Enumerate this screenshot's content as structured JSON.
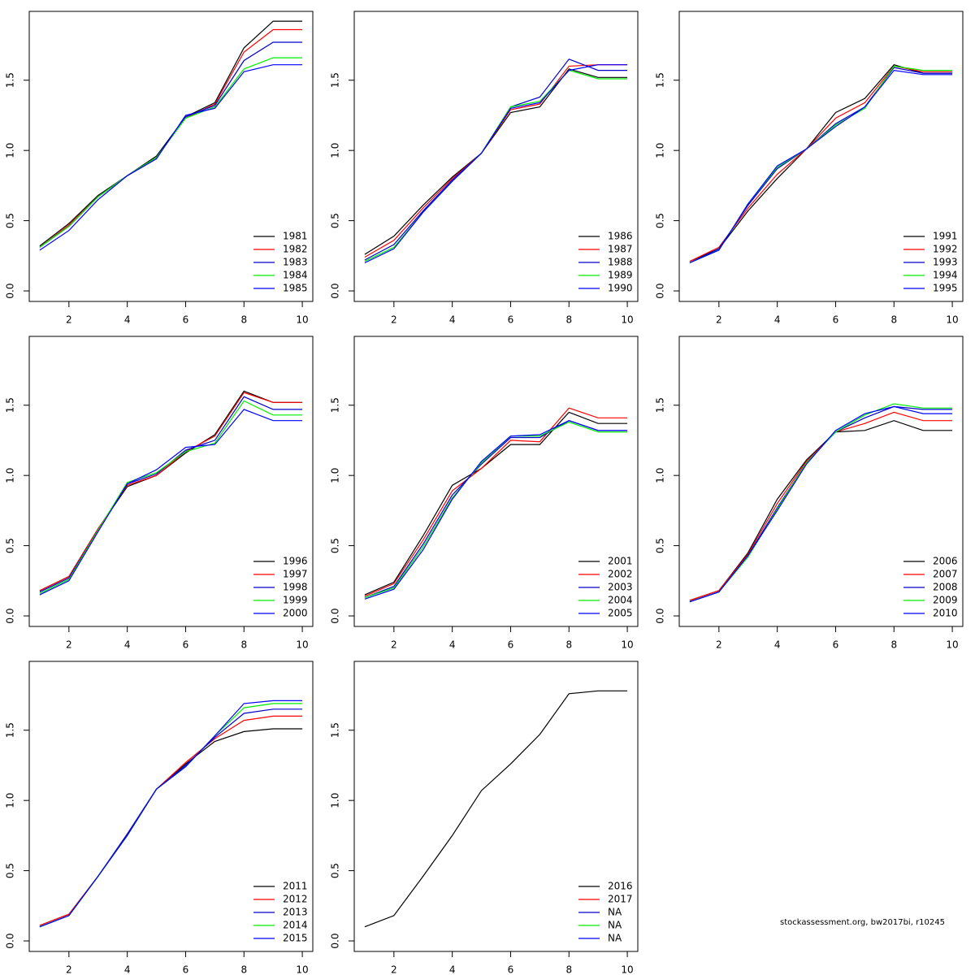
{
  "chart_data": [
    {
      "type": "line",
      "x": [
        1,
        2,
        3,
        4,
        5,
        6,
        7,
        8,
        9,
        10
      ],
      "xlim": [
        0.64,
        10.36
      ],
      "ylim": [
        -0.075,
        1.99
      ],
      "xticks": [
        2,
        4,
        6,
        8,
        10
      ],
      "yticks": [
        {
          "value": 0,
          "label": "0.0"
        },
        0.5,
        {
          "value": 1,
          "label": "1.0"
        },
        1.5
      ],
      "legend": "bottomright",
      "series": [
        {
          "name": "1981",
          "color": "#000000",
          "values": [
            0.32,
            0.48,
            0.68,
            0.82,
            0.96,
            1.24,
            1.34,
            1.73,
            1.92,
            1.92
          ]
        },
        {
          "name": "1982",
          "color": "#ff0000",
          "values": [
            0.31,
            0.47,
            0.67,
            0.82,
            0.95,
            1.23,
            1.33,
            1.7,
            1.86,
            1.86
          ]
        },
        {
          "name": "1983",
          "color": "#0000cd",
          "values": [
            0.31,
            0.46,
            0.67,
            0.82,
            0.95,
            1.24,
            1.32,
            1.64,
            1.77,
            1.77
          ]
        },
        {
          "name": "1984",
          "color": "#00ee00",
          "values": [
            0.31,
            0.46,
            0.67,
            0.82,
            0.95,
            1.23,
            1.31,
            1.58,
            1.66,
            1.66
          ]
        },
        {
          "name": "1985",
          "color": "#0000ff",
          "values": [
            0.29,
            0.43,
            0.65,
            0.82,
            0.94,
            1.25,
            1.3,
            1.56,
            1.61,
            1.61
          ]
        }
      ]
    },
    {
      "type": "line",
      "x": [
        1,
        2,
        3,
        4,
        5,
        6,
        7,
        8,
        9,
        10
      ],
      "xlim": [
        0.64,
        10.36
      ],
      "ylim": [
        -0.075,
        1.99
      ],
      "xticks": [
        2,
        4,
        6,
        8,
        10
      ],
      "yticks": [
        {
          "value": 0,
          "label": "0.0"
        },
        0.5,
        {
          "value": 1,
          "label": "1.0"
        },
        1.5
      ],
      "legend": "bottomright",
      "series": [
        {
          "name": "1986",
          "color": "#000000",
          "values": [
            0.26,
            0.39,
            0.61,
            0.81,
            0.98,
            1.27,
            1.31,
            1.58,
            1.52,
            1.52
          ]
        },
        {
          "name": "1987",
          "color": "#ff0000",
          "values": [
            0.24,
            0.36,
            0.59,
            0.8,
            0.98,
            1.29,
            1.33,
            1.6,
            1.61,
            1.61
          ]
        },
        {
          "name": "1988",
          "color": "#0000cd",
          "values": [
            0.22,
            0.33,
            0.57,
            0.79,
            0.98,
            1.31,
            1.38,
            1.65,
            1.57,
            1.57
          ]
        },
        {
          "name": "1989",
          "color": "#00ee00",
          "values": [
            0.21,
            0.31,
            0.56,
            0.78,
            0.98,
            1.31,
            1.35,
            1.57,
            1.51,
            1.51
          ]
        },
        {
          "name": "1990",
          "color": "#0000ff",
          "values": [
            0.2,
            0.3,
            0.56,
            0.78,
            0.98,
            1.3,
            1.34,
            1.57,
            1.61,
            1.61
          ]
        }
      ]
    },
    {
      "type": "line",
      "x": [
        1,
        2,
        3,
        4,
        5,
        6,
        7,
        8,
        9,
        10
      ],
      "xlim": [
        0.64,
        10.36
      ],
      "ylim": [
        -0.075,
        1.99
      ],
      "xticks": [
        2,
        4,
        6,
        8,
        10
      ],
      "yticks": [
        {
          "value": 0,
          "label": "0.0"
        },
        0.5,
        {
          "value": 1,
          "label": "1.0"
        },
        1.5
      ],
      "legend": "bottomright",
      "series": [
        {
          "name": "1991",
          "color": "#000000",
          "values": [
            0.21,
            0.3,
            0.57,
            0.8,
            1.01,
            1.27,
            1.37,
            1.61,
            1.55,
            1.55
          ]
        },
        {
          "name": "1992",
          "color": "#ff0000",
          "values": [
            0.21,
            0.31,
            0.59,
            0.83,
            1.01,
            1.23,
            1.34,
            1.6,
            1.56,
            1.56
          ]
        },
        {
          "name": "1993",
          "color": "#0000cd",
          "values": [
            0.2,
            0.3,
            0.61,
            0.87,
            1.01,
            1.19,
            1.31,
            1.59,
            1.55,
            1.55
          ]
        },
        {
          "name": "1994",
          "color": "#00ee00",
          "values": [
            0.2,
            0.29,
            0.62,
            0.88,
            1.01,
            1.18,
            1.3,
            1.6,
            1.57,
            1.57
          ]
        },
        {
          "name": "1995",
          "color": "#0000ff",
          "values": [
            0.2,
            0.29,
            0.62,
            0.89,
            1.01,
            1.17,
            1.31,
            1.57,
            1.54,
            1.54
          ]
        }
      ]
    },
    {
      "type": "line",
      "x": [
        1,
        2,
        3,
        4,
        5,
        6,
        7,
        8,
        9,
        10
      ],
      "xlim": [
        0.64,
        10.36
      ],
      "ylim": [
        -0.075,
        1.99
      ],
      "xticks": [
        2,
        4,
        6,
        8,
        10
      ],
      "yticks": [
        {
          "value": 0,
          "label": "0.0"
        },
        0.5,
        {
          "value": 1,
          "label": "1.0"
        },
        1.5
      ],
      "legend": "bottomright",
      "series": [
        {
          "name": "1996",
          "color": "#000000",
          "values": [
            0.18,
            0.28,
            0.62,
            0.92,
            1.0,
            1.16,
            1.29,
            1.6,
            1.52,
            1.52
          ]
        },
        {
          "name": "1997",
          "color": "#ff0000",
          "values": [
            0.18,
            0.28,
            0.62,
            0.93,
            1.0,
            1.17,
            1.28,
            1.59,
            1.52,
            1.52
          ]
        },
        {
          "name": "1998",
          "color": "#0000cd",
          "values": [
            0.17,
            0.27,
            0.61,
            0.94,
            1.01,
            1.18,
            1.25,
            1.56,
            1.47,
            1.47
          ]
        },
        {
          "name": "1999",
          "color": "#00ee00",
          "values": [
            0.16,
            0.26,
            0.61,
            0.95,
            1.02,
            1.17,
            1.23,
            1.53,
            1.43,
            1.43
          ]
        },
        {
          "name": "2000",
          "color": "#0000ff",
          "values": [
            0.15,
            0.25,
            0.6,
            0.94,
            1.04,
            1.2,
            1.22,
            1.47,
            1.39,
            1.39
          ]
        }
      ]
    },
    {
      "type": "line",
      "x": [
        1,
        2,
        3,
        4,
        5,
        6,
        7,
        8,
        9,
        10
      ],
      "xlim": [
        0.64,
        10.36
      ],
      "ylim": [
        -0.075,
        1.99
      ],
      "xticks": [
        2,
        4,
        6,
        8,
        10
      ],
      "yticks": [
        {
          "value": 0,
          "label": "0.0"
        },
        0.5,
        {
          "value": 1,
          "label": "1.0"
        },
        1.5
      ],
      "legend": "bottomright",
      "series": [
        {
          "name": "2001",
          "color": "#000000",
          "values": [
            0.15,
            0.24,
            0.57,
            0.93,
            1.05,
            1.22,
            1.22,
            1.45,
            1.37,
            1.37
          ]
        },
        {
          "name": "2002",
          "color": "#ff0000",
          "values": [
            0.14,
            0.23,
            0.54,
            0.89,
            1.05,
            1.25,
            1.24,
            1.48,
            1.41,
            1.41
          ]
        },
        {
          "name": "2003",
          "color": "#0000cd",
          "values": [
            0.13,
            0.21,
            0.51,
            0.86,
            1.08,
            1.27,
            1.27,
            1.39,
            1.32,
            1.32
          ]
        },
        {
          "name": "2004",
          "color": "#00ee00",
          "values": [
            0.13,
            0.2,
            0.49,
            0.84,
            1.09,
            1.28,
            1.28,
            1.38,
            1.31,
            1.31
          ]
        },
        {
          "name": "2005",
          "color": "#0000ff",
          "values": [
            0.12,
            0.19,
            0.47,
            0.83,
            1.1,
            1.28,
            1.29,
            1.39,
            1.32,
            1.32
          ]
        }
      ]
    },
    {
      "type": "line",
      "x": [
        1,
        2,
        3,
        4,
        5,
        6,
        7,
        8,
        9,
        10
      ],
      "xlim": [
        0.64,
        10.36
      ],
      "ylim": [
        -0.075,
        1.99
      ],
      "xticks": [
        2,
        4,
        6,
        8,
        10
      ],
      "yticks": [
        {
          "value": 0,
          "label": "0.0"
        },
        0.5,
        {
          "value": 1,
          "label": "1.0"
        },
        1.5
      ],
      "legend": "bottomright",
      "series": [
        {
          "name": "2006",
          "color": "#000000",
          "values": [
            0.11,
            0.18,
            0.45,
            0.83,
            1.11,
            1.31,
            1.32,
            1.39,
            1.32,
            1.32
          ]
        },
        {
          "name": "2007",
          "color": "#ff0000",
          "values": [
            0.11,
            0.18,
            0.44,
            0.8,
            1.1,
            1.31,
            1.37,
            1.45,
            1.39,
            1.39
          ]
        },
        {
          "name": "2008",
          "color": "#0000cd",
          "values": [
            0.1,
            0.17,
            0.43,
            0.77,
            1.09,
            1.31,
            1.41,
            1.49,
            1.47,
            1.47
          ]
        },
        {
          "name": "2009",
          "color": "#00ee00",
          "values": [
            0.1,
            0.17,
            0.42,
            0.76,
            1.09,
            1.31,
            1.43,
            1.51,
            1.48,
            1.48
          ]
        },
        {
          "name": "2010",
          "color": "#0000ff",
          "values": [
            0.1,
            0.17,
            0.43,
            0.75,
            1.08,
            1.32,
            1.44,
            1.49,
            1.44,
            1.44
          ]
        }
      ]
    },
    {
      "type": "line",
      "x": [
        1,
        2,
        3,
        4,
        5,
        6,
        7,
        8,
        9,
        10
      ],
      "xlim": [
        0.64,
        10.36
      ],
      "ylim": [
        -0.075,
        1.99
      ],
      "xticks": [
        2,
        4,
        6,
        8,
        10
      ],
      "yticks": [
        {
          "value": 0,
          "label": "0.0"
        },
        0.5,
        {
          "value": 1,
          "label": "1.0"
        },
        1.5
      ],
      "legend": "bottomright",
      "series": [
        {
          "name": "2011",
          "color": "#000000",
          "values": [
            0.11,
            0.19,
            0.46,
            0.76,
            1.08,
            1.26,
            1.42,
            1.49,
            1.51,
            1.51
          ]
        },
        {
          "name": "2012",
          "color": "#ff0000",
          "values": [
            0.11,
            0.19,
            0.46,
            0.76,
            1.08,
            1.27,
            1.44,
            1.57,
            1.6,
            1.6
          ]
        },
        {
          "name": "2013",
          "color": "#0000cd",
          "values": [
            0.1,
            0.18,
            0.46,
            0.76,
            1.08,
            1.25,
            1.45,
            1.62,
            1.65,
            1.65
          ]
        },
        {
          "name": "2014",
          "color": "#00ee00",
          "values": [
            0.1,
            0.18,
            0.46,
            0.75,
            1.08,
            1.24,
            1.46,
            1.66,
            1.69,
            1.69
          ]
        },
        {
          "name": "2015",
          "color": "#0000ff",
          "values": [
            0.1,
            0.18,
            0.46,
            0.75,
            1.08,
            1.24,
            1.46,
            1.69,
            1.71,
            1.71
          ]
        }
      ]
    },
    {
      "type": "line",
      "x": [
        1,
        2,
        3,
        4,
        5,
        6,
        7,
        8,
        9,
        10
      ],
      "xlim": [
        0.64,
        10.36
      ],
      "ylim": [
        -0.075,
        1.99
      ],
      "xticks": [
        2,
        4,
        6,
        8,
        10
      ],
      "yticks": [
        {
          "value": 0,
          "label": "0.0"
        },
        0.5,
        {
          "value": 1,
          "label": "1.0"
        },
        1.5
      ],
      "legend": "bottomright",
      "series": [
        {
          "name": "2016",
          "color": "#000000",
          "values": [
            0.1,
            0.18,
            0.46,
            0.75,
            1.07,
            1.26,
            1.47,
            1.76,
            1.78,
            1.78
          ]
        },
        {
          "name": "2017",
          "color": "#ff0000",
          "values": [
            null,
            null,
            null,
            null,
            null,
            null,
            null,
            null,
            null,
            null
          ]
        },
        {
          "name": "NA",
          "color": "#0000cd",
          "values": [
            null,
            null,
            null,
            null,
            null,
            null,
            null,
            null,
            null,
            null
          ]
        },
        {
          "name": "NA",
          "color": "#00ee00",
          "values": [
            null,
            null,
            null,
            null,
            null,
            null,
            null,
            null,
            null,
            null
          ]
        },
        {
          "name": "NA",
          "color": "#0000ff",
          "values": [
            null,
            null,
            null,
            null,
            null,
            null,
            null,
            null,
            null,
            null
          ]
        }
      ]
    }
  ],
  "footer": "stockassessment.org, bw2017bi, r10245"
}
